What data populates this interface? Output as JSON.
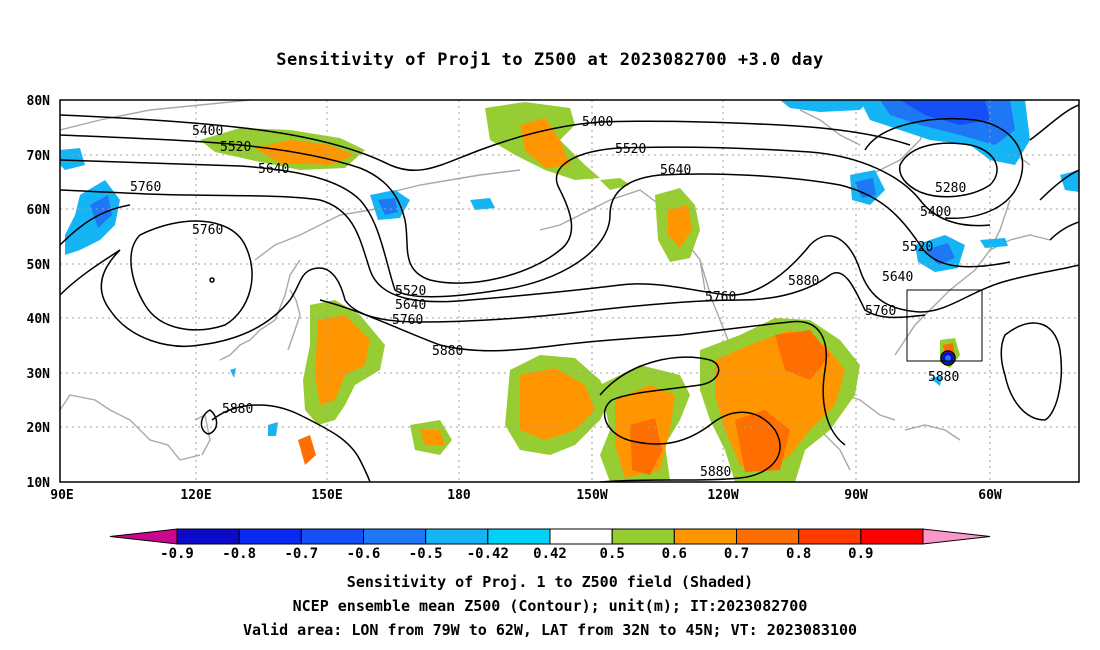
{
  "title": "Sensitivity of Proj1 to Z500 at 2023082700 +3.0 day",
  "axes": {
    "lat_labels": [
      "80N",
      "70N",
      "60N",
      "50N",
      "40N",
      "30N",
      "20N",
      "10N"
    ],
    "lon_labels": [
      "90E",
      "120E",
      "150E",
      "180",
      "150W",
      "120W",
      "90W",
      "60W"
    ]
  },
  "contour_labels": [
    "5400",
    "5520",
    "5640",
    "5760",
    "5760",
    "5880",
    "5880",
    "5520",
    "5640",
    "5760",
    "5880",
    "5400",
    "5520",
    "5640",
    "5760",
    "5880",
    "5280",
    "5400",
    "5520",
    "5640",
    "5760",
    "5880",
    "5880"
  ],
  "colorbar": {
    "labels": [
      "-0.9",
      "-0.8",
      "-0.7",
      "-0.6",
      "-0.5",
      "-0.42",
      "0.42",
      "0.5",
      "0.6",
      "0.7",
      "0.8",
      "0.9"
    ],
    "colors": [
      "#c8078c",
      "#0a0ac8",
      "#0a28f0",
      "#1450f5",
      "#1e78f5",
      "#14b4f5",
      "#00d2fa",
      "#ffffff",
      "#96cd32",
      "#ff9600",
      "#ff6e00",
      "#ff3c00",
      "#ff0000",
      "#fa96c8"
    ]
  },
  "captions": [
    "Sensitivity of Proj. 1 to Z500 field (Shaded)",
    "NCEP ensemble mean Z500 (Contour); unit(m); IT:2023082700",
    "Valid area: LON from 79W to 62W, LAT from 32N to 45N; VT: 2023083100"
  ]
}
